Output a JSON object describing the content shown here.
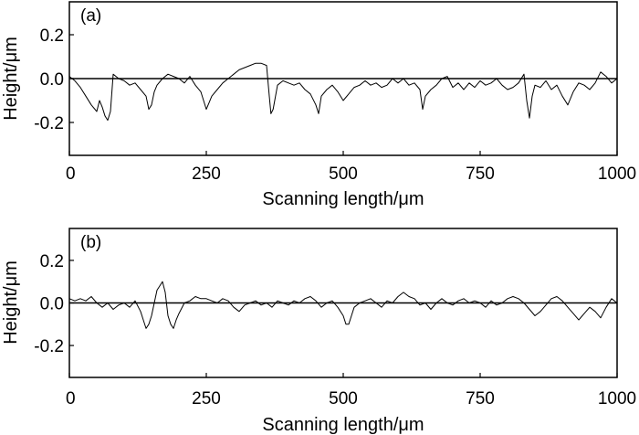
{
  "chart_data": [
    {
      "type": "line",
      "panel_label": "(a)",
      "xlabel": "Scanning length/μm",
      "ylabel": "Height/μm",
      "xlim": [
        0,
        1000
      ],
      "ylim": [
        -0.35,
        0.35
      ],
      "xticks": [
        0,
        250,
        500,
        750,
        1000
      ],
      "xtick_labels": [
        "0",
        "250",
        "500",
        "750",
        "1000"
      ],
      "yticks": [
        0.2,
        0.0,
        -0.2
      ],
      "ytick_labels": [
        "0.2",
        "0.0",
        "-0.2"
      ],
      "reference_line_y": 0,
      "grid": false,
      "line_color": "#000000",
      "series": [
        {
          "x": [
            0,
            10,
            20,
            30,
            40,
            50,
            55,
            60,
            65,
            70,
            75,
            80,
            90,
            100,
            110,
            120,
            130,
            140,
            145,
            150,
            155,
            160,
            170,
            180,
            190,
            200,
            210,
            220,
            230,
            240,
            245,
            250,
            255,
            260,
            270,
            280,
            290,
            300,
            310,
            320,
            330,
            340,
            350,
            360,
            365,
            368,
            372,
            380,
            390,
            400,
            410,
            420,
            430,
            440,
            450,
            455,
            460,
            470,
            480,
            490,
            500,
            510,
            520,
            530,
            540,
            550,
            560,
            570,
            580,
            590,
            600,
            610,
            620,
            630,
            640,
            645,
            650,
            660,
            670,
            680,
            690,
            700,
            710,
            720,
            730,
            740,
            750,
            760,
            770,
            780,
            790,
            800,
            810,
            820,
            830,
            835,
            840,
            845,
            850,
            860,
            870,
            880,
            890,
            900,
            910,
            920,
            930,
            940,
            950,
            960,
            970,
            980,
            990,
            1000
          ],
          "y": [
            0.01,
            -0.01,
            -0.04,
            -0.08,
            -0.12,
            -0.15,
            -0.1,
            -0.13,
            -0.17,
            -0.19,
            -0.15,
            0.02,
            0.0,
            -0.01,
            -0.03,
            -0.02,
            -0.05,
            -0.08,
            -0.14,
            -0.12,
            -0.06,
            -0.03,
            0.0,
            0.02,
            0.01,
            0.0,
            -0.02,
            0.01,
            -0.03,
            -0.06,
            -0.1,
            -0.14,
            -0.11,
            -0.08,
            -0.05,
            -0.02,
            0.0,
            0.02,
            0.04,
            0.05,
            0.06,
            0.07,
            0.07,
            0.06,
            -0.08,
            -0.16,
            -0.14,
            -0.03,
            -0.01,
            -0.02,
            -0.03,
            -0.02,
            -0.05,
            -0.07,
            -0.12,
            -0.16,
            -0.08,
            -0.05,
            -0.03,
            -0.06,
            -0.1,
            -0.07,
            -0.04,
            -0.03,
            -0.01,
            -0.03,
            -0.02,
            -0.04,
            -0.03,
            0.0,
            -0.02,
            0.0,
            -0.03,
            -0.02,
            -0.05,
            -0.14,
            -0.08,
            -0.05,
            -0.03,
            0.0,
            0.01,
            -0.04,
            -0.02,
            -0.05,
            -0.02,
            -0.04,
            -0.01,
            -0.03,
            -0.02,
            0.0,
            -0.03,
            -0.05,
            -0.04,
            -0.02,
            0.02,
            -0.1,
            -0.18,
            -0.08,
            -0.03,
            -0.04,
            -0.01,
            -0.05,
            -0.03,
            -0.08,
            -0.12,
            -0.06,
            -0.02,
            -0.03,
            -0.05,
            -0.02,
            0.03,
            0.01,
            -0.02,
            0.0
          ]
        }
      ]
    },
    {
      "type": "line",
      "panel_label": "(b)",
      "xlabel": "Scanning length/μm",
      "ylabel": "Height/μm",
      "xlim": [
        0,
        1000
      ],
      "ylim": [
        -0.35,
        0.35
      ],
      "xticks": [
        0,
        250,
        500,
        750,
        1000
      ],
      "xtick_labels": [
        "0",
        "250",
        "500",
        "750",
        "1000"
      ],
      "yticks": [
        0.2,
        0.0,
        -0.2
      ],
      "ytick_labels": [
        "0.2",
        "0.0",
        "-0.2"
      ],
      "reference_line_y": 0,
      "grid": false,
      "line_color": "#000000",
      "series": [
        {
          "x": [
            0,
            10,
            20,
            30,
            40,
            50,
            60,
            70,
            80,
            90,
            100,
            110,
            120,
            130,
            135,
            140,
            145,
            150,
            155,
            160,
            165,
            170,
            175,
            180,
            185,
            190,
            195,
            200,
            210,
            220,
            230,
            240,
            250,
            260,
            270,
            280,
            290,
            300,
            310,
            320,
            330,
            340,
            350,
            360,
            370,
            380,
            390,
            400,
            410,
            420,
            430,
            440,
            450,
            460,
            470,
            480,
            490,
            500,
            505,
            510,
            515,
            520,
            530,
            540,
            550,
            560,
            570,
            580,
            590,
            600,
            610,
            620,
            630,
            640,
            650,
            660,
            670,
            680,
            690,
            700,
            710,
            720,
            730,
            740,
            750,
            760,
            770,
            780,
            790,
            800,
            810,
            820,
            830,
            840,
            850,
            860,
            870,
            880,
            890,
            900,
            910,
            920,
            930,
            940,
            950,
            960,
            970,
            980,
            990,
            1000
          ],
          "y": [
            0.02,
            0.01,
            0.02,
            0.01,
            0.03,
            0.0,
            -0.02,
            0.0,
            -0.03,
            -0.01,
            0.0,
            -0.02,
            0.01,
            -0.04,
            -0.08,
            -0.12,
            -0.1,
            -0.06,
            0.0,
            0.06,
            0.08,
            0.1,
            0.05,
            -0.06,
            -0.1,
            -0.12,
            -0.08,
            -0.05,
            0.0,
            0.01,
            0.03,
            0.02,
            0.02,
            0.01,
            0.0,
            0.02,
            0.01,
            -0.02,
            -0.04,
            -0.01,
            0.0,
            0.01,
            -0.01,
            0.0,
            -0.02,
            0.01,
            0.0,
            -0.01,
            0.01,
            0.0,
            0.02,
            0.03,
            0.01,
            -0.02,
            0.0,
            0.01,
            -0.02,
            -0.06,
            -0.1,
            -0.1,
            -0.06,
            -0.02,
            0.0,
            0.01,
            0.02,
            0.0,
            -0.02,
            0.01,
            0.0,
            0.03,
            0.05,
            0.03,
            0.02,
            -0.01,
            0.0,
            -0.03,
            0.0,
            0.02,
            0.0,
            -0.01,
            0.01,
            0.02,
            0.0,
            0.01,
            0.0,
            -0.02,
            0.01,
            -0.01,
            0.0,
            0.02,
            0.03,
            0.02,
            0.0,
            -0.03,
            -0.06,
            -0.04,
            -0.01,
            0.02,
            0.03,
            0.01,
            -0.02,
            -0.05,
            -0.08,
            -0.05,
            -0.02,
            -0.04,
            -0.07,
            -0.02,
            0.02,
            0.0
          ]
        }
      ]
    }
  ]
}
